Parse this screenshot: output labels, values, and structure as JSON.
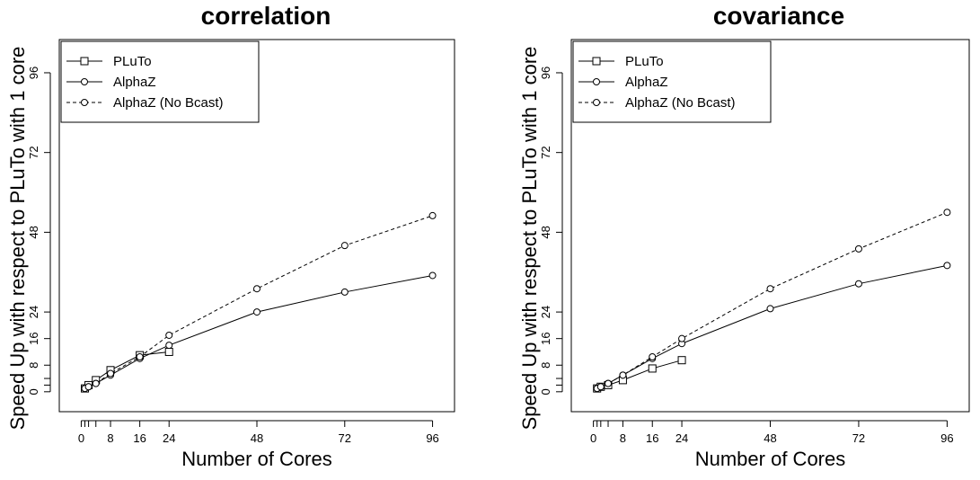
{
  "chart_data": [
    {
      "type": "line",
      "title": "correlation",
      "xlabel": "Number of Cores",
      "ylabel": "Speed Up with respect to PLuTo with 1 core",
      "xlim": [
        -6,
        102
      ],
      "ylim": [
        -6,
        106
      ],
      "x_ticks": [
        0,
        8,
        16,
        24,
        48,
        72,
        96
      ],
      "x_minor_ticks": [
        1,
        2,
        4
      ],
      "y_ticks": [
        0,
        8,
        16,
        24,
        48,
        72,
        96
      ],
      "y_minor_ticks": [
        2,
        4
      ],
      "grid": false,
      "legend_position": "top-left",
      "series": [
        {
          "name": "PLuTo",
          "marker": "square",
          "line": "solid",
          "x": [
            1,
            2,
            4,
            8,
            16,
            24
          ],
          "y": [
            1,
            2,
            3.5,
            6.5,
            11,
            12
          ]
        },
        {
          "name": "AlphaZ",
          "marker": "circle",
          "line": "solid",
          "x": [
            1,
            2,
            4,
            8,
            16,
            24,
            48,
            72,
            96
          ],
          "y": [
            1,
            1.5,
            2.5,
            5,
            10,
            14,
            24,
            30,
            35
          ]
        },
        {
          "name": "AlphaZ (No Bcast)",
          "marker": "circle",
          "line": "dashed",
          "x": [
            1,
            2,
            4,
            8,
            16,
            24,
            48,
            72,
            96
          ],
          "y": [
            1,
            1.5,
            2.5,
            5.5,
            10.5,
            17,
            31,
            44,
            53
          ]
        }
      ]
    },
    {
      "type": "line",
      "title": "covariance",
      "xlabel": "Number of Cores",
      "ylabel": "Speed Up with respect to PLuTo with 1 core",
      "xlim": [
        -6,
        102
      ],
      "ylim": [
        -6,
        106
      ],
      "x_ticks": [
        0,
        8,
        16,
        24,
        48,
        72,
        96
      ],
      "x_minor_ticks": [
        1,
        2,
        4
      ],
      "y_ticks": [
        0,
        8,
        16,
        24,
        48,
        72,
        96
      ],
      "y_minor_ticks": [
        2,
        4
      ],
      "grid": false,
      "legend_position": "top-left",
      "series": [
        {
          "name": "PLuTo",
          "marker": "square",
          "line": "solid",
          "x": [
            1,
            2,
            4,
            8,
            16,
            24
          ],
          "y": [
            1,
            1.5,
            2,
            3.5,
            7,
            9.5
          ]
        },
        {
          "name": "AlphaZ",
          "marker": "circle",
          "line": "solid",
          "x": [
            1,
            2,
            4,
            8,
            16,
            24,
            48,
            72,
            96
          ],
          "y": [
            1,
            1.5,
            2.5,
            5,
            10,
            14.5,
            25,
            32.5,
            38
          ]
        },
        {
          "name": "AlphaZ (No Bcast)",
          "marker": "circle",
          "line": "dashed",
          "x": [
            1,
            2,
            4,
            8,
            16,
            24,
            48,
            72,
            96
          ],
          "y": [
            1,
            1.5,
            2.5,
            5,
            10.5,
            16,
            31,
            43,
            54
          ]
        }
      ]
    }
  ]
}
